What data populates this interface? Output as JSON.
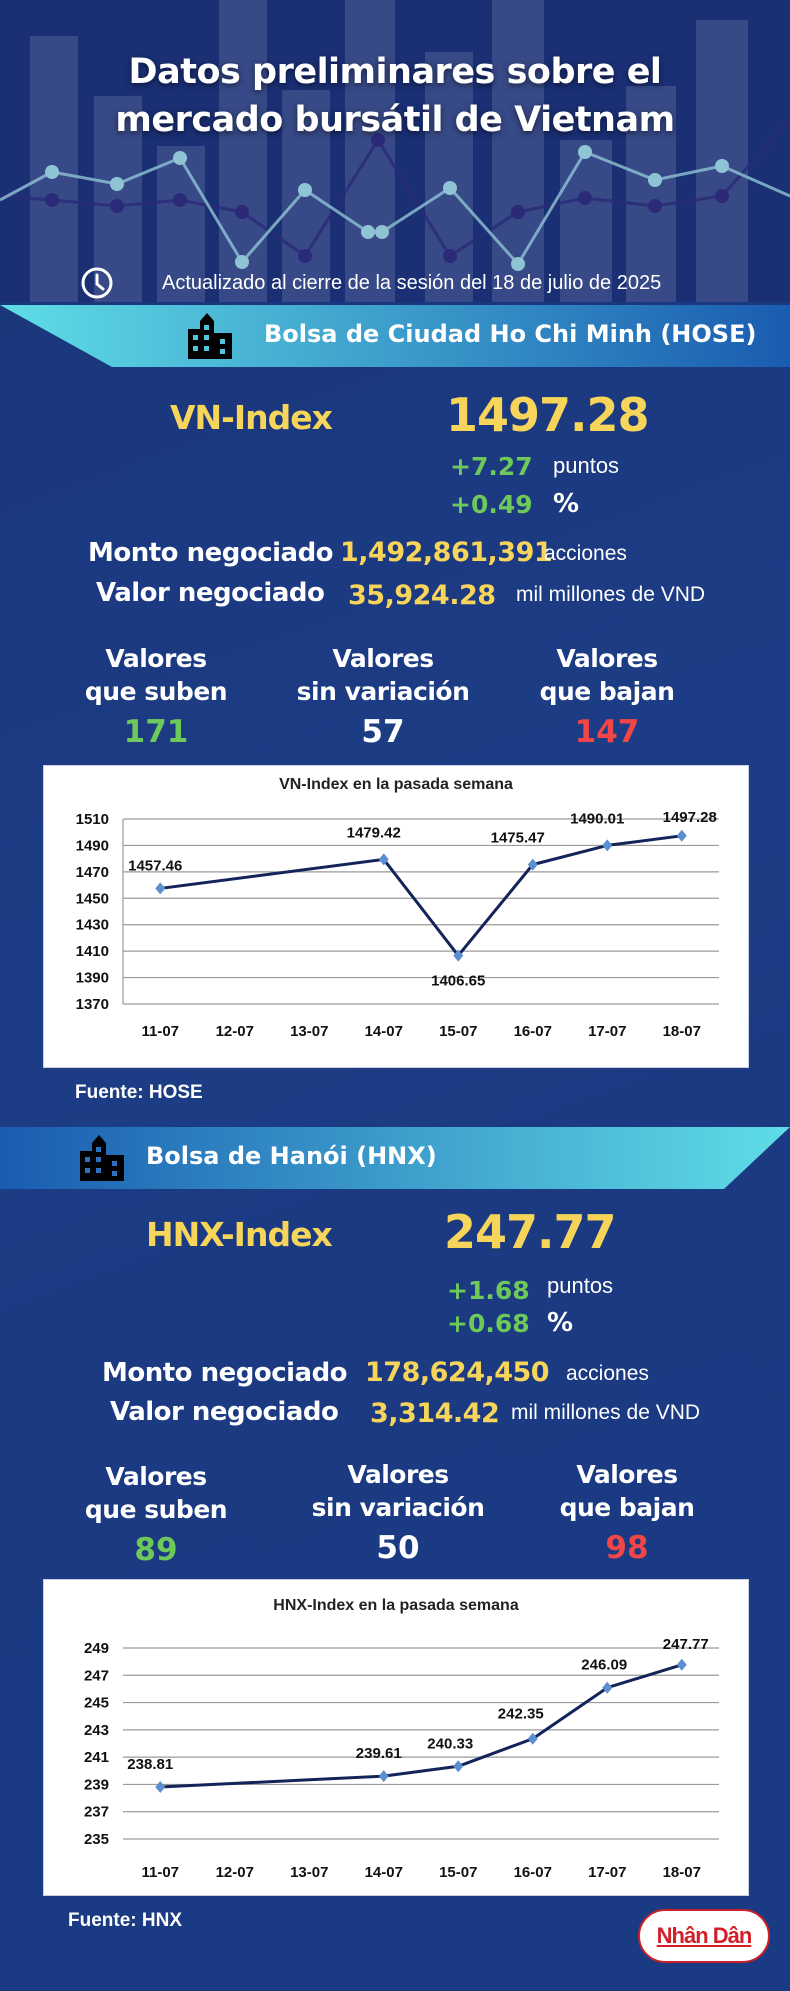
{
  "header": {
    "title_line1": "Datos preliminares sobre el",
    "title_line2": "mercado bursátil de Vietnam",
    "updated": "Actualizado al cierre de la sesión del 18 de julio de 2025",
    "icon": "clock-icon"
  },
  "hose": {
    "band_title": "Bolsa de Ciudad Ho Chi Minh (HOSE)",
    "icon": "building-icon",
    "index_label": "VN-Index",
    "index_value": "1497.28",
    "change_points": "+7.27",
    "change_points_unit": "puntos",
    "change_pct": "+0.49",
    "change_pct_unit": "%",
    "volume_label": "Monto negociado",
    "volume_value": "1,492,861,391",
    "volume_unit": "acciones",
    "value_label": "Valor negociado",
    "value_value": "35,924.28",
    "value_unit": "mil millones de VND",
    "advancers_label_1": "Valores",
    "advancers_label_2": "que suben",
    "advancers": "171",
    "unchanged_label_1": "Valores",
    "unchanged_label_2": "sin variación",
    "unchanged": "57",
    "decliners_label_1": "Valores",
    "decliners_label_2": "que bajan",
    "decliners": "147",
    "source": "Fuente: HOSE"
  },
  "hnx": {
    "band_title": "Bolsa de Hanói (HNX)",
    "icon": "building-icon",
    "index_label": "HNX-Index",
    "index_value": "247.77",
    "change_points": "+1.68",
    "change_points_unit": "puntos",
    "change_pct": "+0.68",
    "change_pct_unit": "%",
    "volume_label": "Monto negociado",
    "volume_value": "178,624,450",
    "volume_unit": "acciones",
    "value_label": "Valor negociado",
    "value_value": "3,314.42",
    "value_unit": "mil millones de VND",
    "advancers_label_1": "Valores",
    "advancers_label_2": "que suben",
    "advancers": "89",
    "unchanged_label_1": "Valores",
    "unchanged_label_2": "sin variación",
    "unchanged": "50",
    "decliners_label_1": "Valores",
    "decliners_label_2": "que bajan",
    "decliners": "98",
    "source": "Fuente:  HNX"
  },
  "logo": {
    "text": "Nhân Dân"
  },
  "colors": {
    "background": "#1b3a82",
    "highlight_yellow": "#f6d55a",
    "up_green": "#6cc95a",
    "down_red": "#f24646",
    "band_light": "#5fdde6",
    "band_dark": "#1a5cb0",
    "line": "#13245a",
    "marker": "#5b8fd0"
  },
  "chart_data": [
    {
      "type": "line",
      "title": "VN-Index en la pasada semana",
      "categories": [
        "11-07",
        "12-07",
        "13-07",
        "14-07",
        "15-07",
        "16-07",
        "17-07",
        "18-07"
      ],
      "x": [
        "11-07",
        "14-07",
        "15-07",
        "16-07",
        "17-07",
        "18-07"
      ],
      "values": [
        1457.46,
        1479.42,
        1406.65,
        1475.47,
        1490.01,
        1497.28
      ],
      "data_labels": [
        "1457.46",
        "1479.42",
        "1406.65",
        "1475.47",
        "1490.01",
        "1497.28"
      ],
      "yticks": [
        1370,
        1390,
        1410,
        1430,
        1450,
        1470,
        1490,
        1510
      ],
      "ylim": [
        1370,
        1510
      ],
      "xlabel": "",
      "ylabel": "",
      "grid": true,
      "legend": "none"
    },
    {
      "type": "line",
      "title": "HNX-Index en la pasada semana",
      "categories": [
        "11-07",
        "12-07",
        "13-07",
        "14-07",
        "15-07",
        "16-07",
        "17-07",
        "18-07"
      ],
      "x": [
        "11-07",
        "14-07",
        "15-07",
        "16-07",
        "17-07",
        "18-07"
      ],
      "values": [
        238.81,
        239.61,
        240.33,
        242.35,
        246.09,
        247.77
      ],
      "data_labels": [
        "238.81",
        "239.61",
        "240.33",
        "242.35",
        "246.09",
        "247.77"
      ],
      "yticks": [
        235,
        237,
        239,
        241,
        243,
        245,
        247,
        249
      ],
      "ylim": [
        235,
        249
      ],
      "xlabel": "",
      "ylabel": "",
      "grid": true,
      "legend": "none"
    }
  ]
}
